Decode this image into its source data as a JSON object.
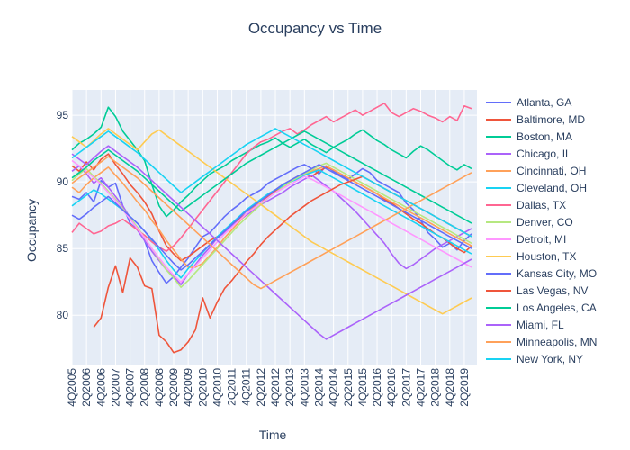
{
  "chart_data": {
    "type": "line",
    "title": "Occupancy vs Time",
    "xlabel": "Time",
    "ylabel": "Occupancy",
    "ylim": [
      76.3,
      96.9
    ],
    "yticks": [
      80,
      85,
      90,
      95
    ],
    "grid": true,
    "legend_position": "right",
    "x": [
      "4Q2005",
      "1Q2006",
      "2Q2006",
      "3Q2006",
      "4Q2006",
      "1Q2007",
      "2Q2007",
      "3Q2007",
      "4Q2007",
      "1Q2008",
      "2Q2008",
      "3Q2008",
      "4Q2008",
      "1Q2009",
      "2Q2009",
      "3Q2009",
      "4Q2009",
      "1Q2010",
      "2Q2010",
      "3Q2010",
      "4Q2010",
      "1Q2011",
      "2Q2011",
      "3Q2011",
      "4Q2011",
      "1Q2012",
      "2Q2012",
      "3Q2012",
      "4Q2012",
      "1Q2013",
      "2Q2013",
      "3Q2013",
      "4Q2013",
      "1Q2014",
      "2Q2014",
      "3Q2014",
      "4Q2014",
      "1Q2015",
      "2Q2015",
      "3Q2015",
      "4Q2015",
      "1Q2016",
      "2Q2016",
      "3Q2016",
      "4Q2016",
      "1Q2017",
      "2Q2017",
      "3Q2017",
      "4Q2017",
      "1Q2018",
      "2Q2018",
      "3Q2018",
      "4Q2018",
      "1Q2019",
      "2Q2019",
      "3Q2019"
    ],
    "xtick_labels": [
      "4Q2005",
      "2Q2006",
      "4Q2006",
      "2Q2007",
      "4Q2007",
      "2Q2008",
      "4Q2008",
      "2Q2009",
      "4Q2009",
      "2Q2010",
      "4Q2010",
      "2Q2011",
      "4Q2011",
      "2Q2012",
      "4Q2012",
      "2Q2013",
      "4Q2013",
      "2Q2014",
      "4Q2014",
      "2Q2015",
      "4Q2015",
      "2Q2016",
      "4Q2016",
      "2Q2017",
      "4Q2017",
      "2Q2018",
      "4Q2018",
      "2Q2019"
    ],
    "series": [
      {
        "name": "Atlanta, GA",
        "color": "#636efa",
        "values": [
          88.9,
          88.7,
          89.2,
          88.5,
          90.1,
          89.6,
          89.9,
          88.2,
          86.9,
          86.4,
          85.6,
          84.1,
          83.2,
          82.4,
          82.9,
          83.6,
          84.3,
          85.1,
          85.9,
          86.2,
          86.8,
          87.4,
          87.9,
          88.3,
          88.8,
          89.1,
          89.4,
          89.9,
          90.2,
          90.5,
          90.8,
          91.1,
          91.3,
          91.0,
          90.6,
          91.2,
          90.8,
          90.5,
          90.2,
          90.6,
          91.0,
          90.7,
          90.1,
          89.8,
          89.5,
          89.2,
          88.4,
          87.9,
          87.1,
          86.2,
          85.7,
          85.1,
          85.4,
          84.9,
          85.6,
          86.1
        ]
      },
      {
        "name": "Baltimore, MD",
        "color": "#ef553b",
        "values": [
          91.2,
          90.8,
          91.5,
          90.9,
          91.7,
          92.1,
          91.3,
          90.6,
          89.8,
          89.2,
          88.5,
          87.6,
          86.3,
          85.2,
          84.6,
          84.1,
          84.4,
          84.8,
          85.2,
          85.6,
          85.9,
          86.3,
          86.8,
          87.2,
          87.6,
          88.0,
          88.4,
          88.9,
          89.3,
          89.6,
          90.0,
          90.3,
          90.6,
          90.4,
          90.8,
          91.1,
          90.9,
          90.6,
          90.3,
          90.0,
          89.7,
          89.4,
          89.1,
          88.7,
          88.4,
          88.0,
          87.6,
          87.2,
          86.9,
          86.5,
          86.1,
          85.8,
          85.4,
          85.0,
          84.7,
          85.2
        ]
      },
      {
        "name": "Boston, MA",
        "color": "#00cc96",
        "values": [
          92.4,
          92.9,
          93.2,
          93.6,
          94.1,
          95.6,
          94.9,
          93.8,
          93.1,
          92.4,
          91.6,
          89.8,
          88.2,
          87.4,
          87.9,
          88.5,
          89.0,
          89.6,
          90.1,
          90.6,
          90.9,
          91.2,
          91.6,
          91.9,
          92.2,
          92.5,
          92.8,
          93.0,
          93.3,
          92.9,
          92.6,
          92.9,
          93.2,
          92.8,
          92.5,
          92.2,
          92.6,
          92.9,
          93.2,
          93.6,
          93.9,
          93.5,
          93.1,
          92.8,
          92.4,
          92.1,
          91.8,
          92.3,
          92.7,
          92.4,
          92.0,
          91.6,
          91.2,
          90.9,
          91.3,
          91.0
        ]
      },
      {
        "name": "Chicago, IL",
        "color": "#ab63fa",
        "values": [
          90.8,
          91.2,
          90.6,
          89.9,
          90.3,
          89.6,
          88.9,
          88.2,
          87.3,
          86.4,
          85.6,
          84.8,
          84.1,
          83.4,
          82.9,
          82.3,
          83.1,
          83.8,
          84.5,
          85.1,
          85.8,
          86.2,
          86.7,
          87.1,
          87.5,
          87.9,
          88.3,
          88.6,
          88.9,
          89.2,
          89.6,
          89.9,
          90.2,
          90.5,
          90.1,
          89.7,
          89.3,
          88.8,
          88.3,
          87.8,
          87.2,
          86.6,
          86.0,
          85.4,
          84.6,
          83.9,
          83.5,
          83.8,
          84.2,
          84.6,
          85.0,
          85.3,
          85.6,
          85.9,
          86.2,
          86.5
        ]
      },
      {
        "name": "Cincinnati, OH",
        "color": "#ffa15a",
        "values": [
          89.6,
          89.2,
          89.8,
          90.3,
          90.7,
          91.1,
          90.5,
          89.9,
          89.2,
          88.5,
          87.9,
          87.1,
          86.4,
          85.6,
          84.9,
          84.2,
          83.6,
          83.6,
          83.9,
          84.5,
          85.1,
          85.8,
          86.4,
          87.0,
          87.6,
          88.1,
          88.6,
          89.0,
          89.4,
          89.8,
          90.1,
          90.4,
          90.6,
          90.8,
          91.0,
          91.2,
          90.9,
          90.6,
          90.3,
          90.0,
          89.7,
          89.4,
          89.1,
          88.8,
          88.5,
          88.2,
          87.9,
          87.6,
          87.3,
          87.0,
          86.7,
          86.4,
          86.1,
          85.8,
          85.5,
          85.2
        ]
      },
      {
        "name": "Cleveland, OH",
        "color": "#19d3f3",
        "values": [
          88.2,
          88.6,
          89.0,
          89.4,
          89.1,
          88.7,
          88.3,
          87.9,
          87.4,
          86.9,
          86.3,
          85.6,
          84.9,
          84.1,
          83.4,
          82.8,
          83.5,
          84.1,
          84.7,
          85.3,
          85.9,
          86.4,
          86.9,
          87.4,
          87.9,
          88.3,
          88.7,
          89.1,
          89.4,
          89.7,
          90.0,
          90.2,
          90.5,
          90.7,
          90.9,
          90.6,
          90.3,
          90.0,
          89.7,
          89.4,
          89.1,
          88.8,
          88.5,
          88.2,
          87.9,
          87.6,
          87.3,
          87.0,
          86.7,
          86.4,
          86.1,
          85.8,
          85.5,
          85.2,
          84.9,
          84.6
        ]
      },
      {
        "name": "Dallas, TX",
        "color": "#ff6692",
        "values": [
          86.2,
          86.9,
          86.5,
          86.1,
          86.3,
          86.7,
          86.9,
          87.2,
          86.8,
          86.4,
          86.0,
          85.5,
          85.1,
          84.8,
          85.2,
          85.8,
          86.5,
          87.2,
          87.9,
          88.6,
          89.3,
          90.0,
          90.7,
          91.4,
          92.1,
          92.6,
          93.0,
          93.2,
          93.5,
          93.8,
          94.0,
          93.6,
          93.9,
          94.3,
          94.6,
          94.9,
          94.5,
          94.8,
          95.1,
          95.4,
          95.0,
          95.3,
          95.6,
          95.9,
          95.2,
          94.9,
          95.2,
          95.5,
          95.3,
          95.0,
          94.8,
          94.5,
          94.9,
          94.6,
          95.7,
          95.5
        ]
      },
      {
        "name": "Denver, CO",
        "color": "#b6e880",
        "values": [
          90.1,
          90.6,
          91.0,
          90.4,
          89.9,
          89.3,
          88.7,
          88.0,
          87.3,
          86.6,
          85.8,
          85.0,
          84.2,
          83.4,
          82.8,
          82.1,
          82.6,
          83.2,
          83.8,
          84.4,
          85.0,
          85.6,
          86.2,
          86.8,
          87.3,
          87.8,
          88.3,
          88.8,
          89.2,
          89.6,
          90.0,
          90.3,
          90.6,
          90.9,
          91.2,
          91.4,
          91.1,
          90.8,
          90.5,
          90.2,
          89.9,
          89.6,
          89.3,
          89.0,
          88.7,
          88.4,
          88.1,
          87.8,
          87.5,
          87.2,
          86.9,
          86.6,
          86.3,
          86.0,
          85.7,
          85.4
        ]
      },
      {
        "name": "Detroit, MI",
        "color": "#ff97ff",
        "values": [
          91.6,
          91.2,
          90.8,
          90.3,
          89.8,
          89.2,
          88.6,
          87.9,
          87.2,
          86.5,
          85.8,
          85.0,
          84.3,
          83.6,
          83.0,
          82.5,
          83.1,
          83.7,
          84.3,
          84.9,
          85.5,
          86.1,
          86.6,
          87.1,
          87.6,
          88.0,
          88.4,
          88.8,
          89.2,
          89.5,
          89.8,
          90.1,
          90.4,
          90.2,
          89.9,
          89.6,
          89.3,
          89.0,
          88.7,
          88.4,
          88.1,
          87.8,
          87.5,
          87.2,
          86.9,
          86.6,
          86.3,
          86.0,
          85.7,
          85.4,
          85.1,
          84.8,
          84.5,
          84.2,
          83.9,
          83.6
        ]
      },
      {
        "name": "Houston, TX",
        "color": "#fecb52",
        "values": [
          93.4,
          93.0,
          92.6,
          93.1,
          93.6,
          94.0,
          93.6,
          93.2,
          92.8,
          92.4,
          93.0,
          93.6,
          93.9,
          93.5,
          93.1,
          92.7,
          92.3,
          91.9,
          91.5,
          91.1,
          90.7,
          90.3,
          89.9,
          89.5,
          89.1,
          88.7,
          88.3,
          87.9,
          87.5,
          87.1,
          86.7,
          86.3,
          85.9,
          85.5,
          85.2,
          84.9,
          84.6,
          84.3,
          84.0,
          83.7,
          83.4,
          83.1,
          82.8,
          82.5,
          82.2,
          81.9,
          81.6,
          81.3,
          81.0,
          80.7,
          80.4,
          80.1,
          80.4,
          80.7,
          81.0,
          81.3
        ]
      },
      {
        "name": "Kansas City, MO",
        "color": "#636efa",
        "values": [
          87.5,
          87.2,
          87.6,
          88.1,
          88.5,
          88.9,
          88.4,
          87.9,
          87.4,
          86.9,
          86.3,
          85.7,
          85.1,
          84.5,
          83.9,
          83.4,
          83.8,
          84.3,
          84.8,
          85.3,
          85.8,
          86.3,
          86.8,
          87.3,
          87.8,
          88.2,
          88.6,
          89.0,
          89.4,
          89.8,
          90.1,
          90.4,
          90.7,
          91.0,
          91.3,
          91.0,
          90.7,
          90.4,
          90.1,
          89.8,
          89.5,
          89.2,
          88.9,
          88.6,
          88.3,
          88.0,
          87.7,
          87.4,
          87.1,
          86.8,
          86.5,
          86.2,
          85.9,
          85.6,
          85.3,
          85.0
        ]
      },
      {
        "name": "Las Vegas, NV",
        "color": "#ef553b",
        "values": [
          null,
          null,
          null,
          79.1,
          79.8,
          82.1,
          83.7,
          81.7,
          84.3,
          83.6,
          82.2,
          82.0,
          78.5,
          78.0,
          77.2,
          77.4,
          78.0,
          78.9,
          81.3,
          79.8,
          81.0,
          82.0,
          82.6,
          83.3,
          84.0,
          84.6,
          85.3,
          85.9,
          86.4,
          86.9,
          87.4,
          87.8,
          88.2,
          88.6,
          88.9,
          89.2,
          89.5,
          89.8,
          90.0,
          90.2,
          90.4,
          90.1,
          89.8,
          89.5,
          89.2,
          88.9,
          88.6,
          88.3,
          88.0,
          87.7,
          87.4,
          87.1,
          86.8,
          86.5,
          86.2,
          85.9
        ]
      },
      {
        "name": "Los Angeles, CA",
        "color": "#00cc96",
        "values": [
          90.3,
          90.7,
          91.1,
          91.6,
          92.0,
          92.4,
          92.0,
          91.6,
          91.2,
          90.8,
          90.3,
          89.8,
          89.3,
          88.8,
          88.3,
          87.8,
          88.2,
          88.6,
          89.0,
          89.4,
          89.8,
          90.2,
          90.6,
          91.0,
          91.4,
          91.7,
          92.0,
          92.3,
          92.6,
          92.9,
          93.2,
          93.5,
          93.8,
          93.5,
          93.2,
          92.9,
          92.6,
          92.3,
          92.0,
          91.7,
          91.4,
          91.1,
          90.8,
          90.5,
          90.2,
          89.9,
          89.6,
          89.3,
          89.0,
          88.7,
          88.4,
          88.1,
          87.8,
          87.5,
          87.2,
          86.9
        ]
      },
      {
        "name": "Miami, FL",
        "color": "#ab63fa",
        "values": [
          92.1,
          91.7,
          91.3,
          91.8,
          92.3,
          92.7,
          92.3,
          91.9,
          91.5,
          91.1,
          90.6,
          90.1,
          89.6,
          89.1,
          88.6,
          88.1,
          87.6,
          87.1,
          86.6,
          86.1,
          85.6,
          85.1,
          84.6,
          84.1,
          83.6,
          83.1,
          82.6,
          82.1,
          81.6,
          81.1,
          80.6,
          80.1,
          79.6,
          79.1,
          78.6,
          78.2,
          78.5,
          78.8,
          79.1,
          79.4,
          79.7,
          80.0,
          80.3,
          80.6,
          80.9,
          81.2,
          81.5,
          81.8,
          82.1,
          82.4,
          82.7,
          83.0,
          83.3,
          83.6,
          83.9,
          84.2
        ]
      },
      {
        "name": "Minneapolis, MN",
        "color": "#ffa15a",
        "values": [
          89.9,
          90.3,
          90.7,
          91.1,
          91.5,
          91.9,
          91.5,
          91.1,
          90.7,
          90.3,
          89.8,
          89.3,
          88.8,
          88.3,
          87.8,
          87.3,
          86.8,
          86.3,
          85.8,
          85.3,
          84.8,
          84.3,
          83.8,
          83.3,
          82.8,
          82.3,
          82.0,
          82.3,
          82.6,
          82.9,
          83.2,
          83.5,
          83.8,
          84.1,
          84.4,
          84.7,
          85.0,
          85.3,
          85.6,
          85.9,
          86.2,
          86.5,
          86.8,
          87.1,
          87.4,
          87.7,
          88.0,
          88.3,
          88.6,
          88.9,
          89.2,
          89.5,
          89.8,
          90.1,
          90.4,
          90.7
        ]
      },
      {
        "name": "New York, NY",
        "color": "#19d3f3",
        "values": [
          91.8,
          92.2,
          92.6,
          93.0,
          93.4,
          93.8,
          93.4,
          93.0,
          92.6,
          92.2,
          91.7,
          91.2,
          90.7,
          90.2,
          89.7,
          89.2,
          89.6,
          90.0,
          90.4,
          90.8,
          91.2,
          91.6,
          92.0,
          92.4,
          92.8,
          93.1,
          93.4,
          93.7,
          94.0,
          93.7,
          93.4,
          93.1,
          92.8,
          92.5,
          92.2,
          91.9,
          91.6,
          91.3,
          91.0,
          90.7,
          90.4,
          90.1,
          89.8,
          89.5,
          89.2,
          88.9,
          88.6,
          88.3,
          88.0,
          87.7,
          87.4,
          87.1,
          86.8,
          86.5,
          86.2,
          85.9
        ]
      }
    ]
  }
}
